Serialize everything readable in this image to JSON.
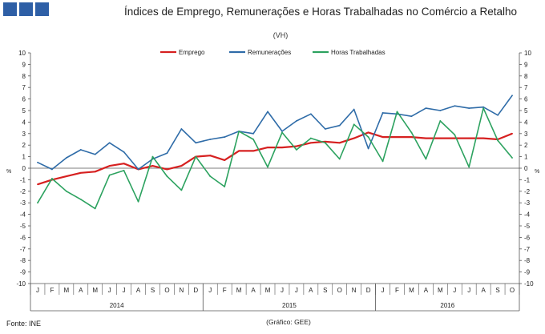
{
  "header": {
    "title": "Índices de Emprego, Remunerações e Horas Trabalhadas no Comércio a Retalho",
    "subtitle": "(VH)",
    "logo_icon": "company-logo-squares"
  },
  "footer": {
    "source": "Fonte: INE",
    "credit": "(Gráfico: GEE)"
  },
  "chart_data": {
    "type": "line",
    "title": "Índices de Emprego, Remunerações e Horas Trabalhadas no Comércio a Retalho",
    "subtitle": "(VH)",
    "ylabel_left": "%",
    "ylabel_right": "%",
    "ylim": [
      -10,
      10
    ],
    "yticks": [
      10,
      9,
      8,
      7,
      6,
      5,
      4,
      3,
      2,
      1,
      0,
      -1,
      -2,
      -3,
      -4,
      -5,
      -6,
      -7,
      -8,
      -9,
      -10
    ],
    "grid": false,
    "legend_position": "top-center",
    "categories": [
      "J",
      "F",
      "M",
      "A",
      "M",
      "J",
      "J",
      "A",
      "S",
      "O",
      "N",
      "D",
      "J",
      "F",
      "M",
      "A",
      "M",
      "J",
      "J",
      "A",
      "S",
      "O",
      "N",
      "D",
      "J",
      "F",
      "M",
      "A",
      "M",
      "J",
      "J",
      "A",
      "S",
      "O"
    ],
    "years": [
      {
        "label": "2014",
        "start": 0,
        "end": 11
      },
      {
        "label": "2015",
        "start": 12,
        "end": 23
      },
      {
        "label": "2016",
        "start": 24,
        "end": 33
      }
    ],
    "series": [
      {
        "name": "Emprego",
        "color": "#d62020",
        "values": [
          -1.4,
          -1.0,
          -0.7,
          -0.4,
          -0.3,
          0.2,
          0.4,
          -0.1,
          0.2,
          -0.1,
          0.2,
          1.0,
          1.1,
          0.7,
          1.5,
          1.5,
          1.8,
          1.8,
          1.9,
          2.2,
          2.3,
          2.2,
          2.6,
          3.1,
          2.7,
          2.7,
          2.7,
          2.6,
          2.6,
          2.6,
          2.6,
          2.6,
          2.5,
          3.0
        ]
      },
      {
        "name": "Remunerações",
        "color": "#2f6ca8",
        "values": [
          0.5,
          -0.1,
          0.9,
          1.6,
          1.2,
          2.2,
          1.4,
          -0.1,
          0.8,
          1.3,
          3.4,
          2.2,
          2.5,
          2.7,
          3.2,
          3.0,
          4.9,
          3.2,
          4.1,
          4.7,
          3.4,
          3.7,
          5.1,
          1.7,
          4.8,
          4.7,
          4.5,
          5.2,
          5.0,
          5.4,
          5.2,
          5.3,
          4.6,
          6.3
        ]
      },
      {
        "name": "Horas Trabalhadas",
        "color": "#2ca25f",
        "values": [
          -3.0,
          -0.9,
          -2.0,
          -2.7,
          -3.5,
          -0.6,
          -0.2,
          -2.9,
          1.0,
          -0.7,
          -1.9,
          1.0,
          -0.7,
          -1.6,
          3.2,
          2.5,
          0.1,
          3.1,
          1.6,
          2.6,
          2.2,
          0.8,
          3.8,
          2.7,
          0.6,
          4.9,
          3.1,
          0.8,
          4.1,
          2.9,
          0.1,
          5.2,
          2.4,
          0.9
        ]
      }
    ]
  }
}
